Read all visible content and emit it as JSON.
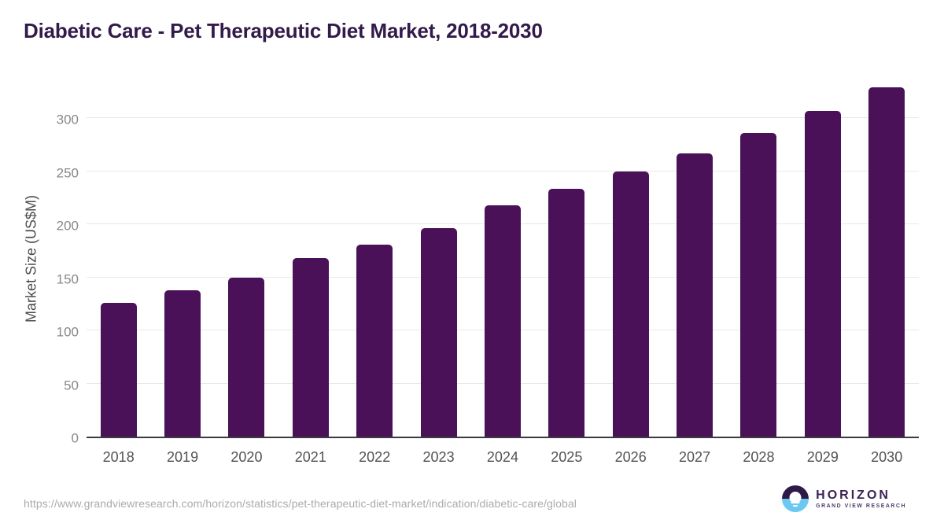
{
  "title": "Diabetic Care - Pet Therapeutic Diet Market, 2018-2030",
  "chart_data": {
    "type": "bar",
    "title": "Diabetic Care - Pet Therapeutic Diet Market, 2018-2030",
    "categories": [
      "2018",
      "2019",
      "2020",
      "2021",
      "2022",
      "2023",
      "2024",
      "2025",
      "2026",
      "2027",
      "2028",
      "2029",
      "2030"
    ],
    "values": [
      126,
      138,
      150,
      168,
      181,
      196,
      218,
      233,
      250,
      267,
      286,
      307,
      329
    ],
    "xlabel": "",
    "ylabel": "Market Size (US$M)",
    "yticks": [
      0,
      50,
      100,
      150,
      200,
      250,
      300
    ],
    "ylim": [
      0,
      338
    ],
    "grid": true,
    "legend": false,
    "bar_color": "#4a1158"
  },
  "footer": {
    "source_url": "https://www.grandviewresearch.com/horizon/statistics/pet-therapeutic-diet-market/indication/diabetic-care/global",
    "logo": {
      "brand": "HORIZON",
      "tagline": "GRAND VIEW RESEARCH"
    }
  },
  "colors": {
    "title": "#321a4a",
    "bar": "#4a1158",
    "gridline": "#e9e9eb",
    "axis_line": "#3b3b3b",
    "y_tick": "#87898b",
    "x_tick": "#515254",
    "source": "#a9abad",
    "logo_dark_purple": "#2e1a47",
    "logo_light_blue": "#6bc9f1"
  }
}
